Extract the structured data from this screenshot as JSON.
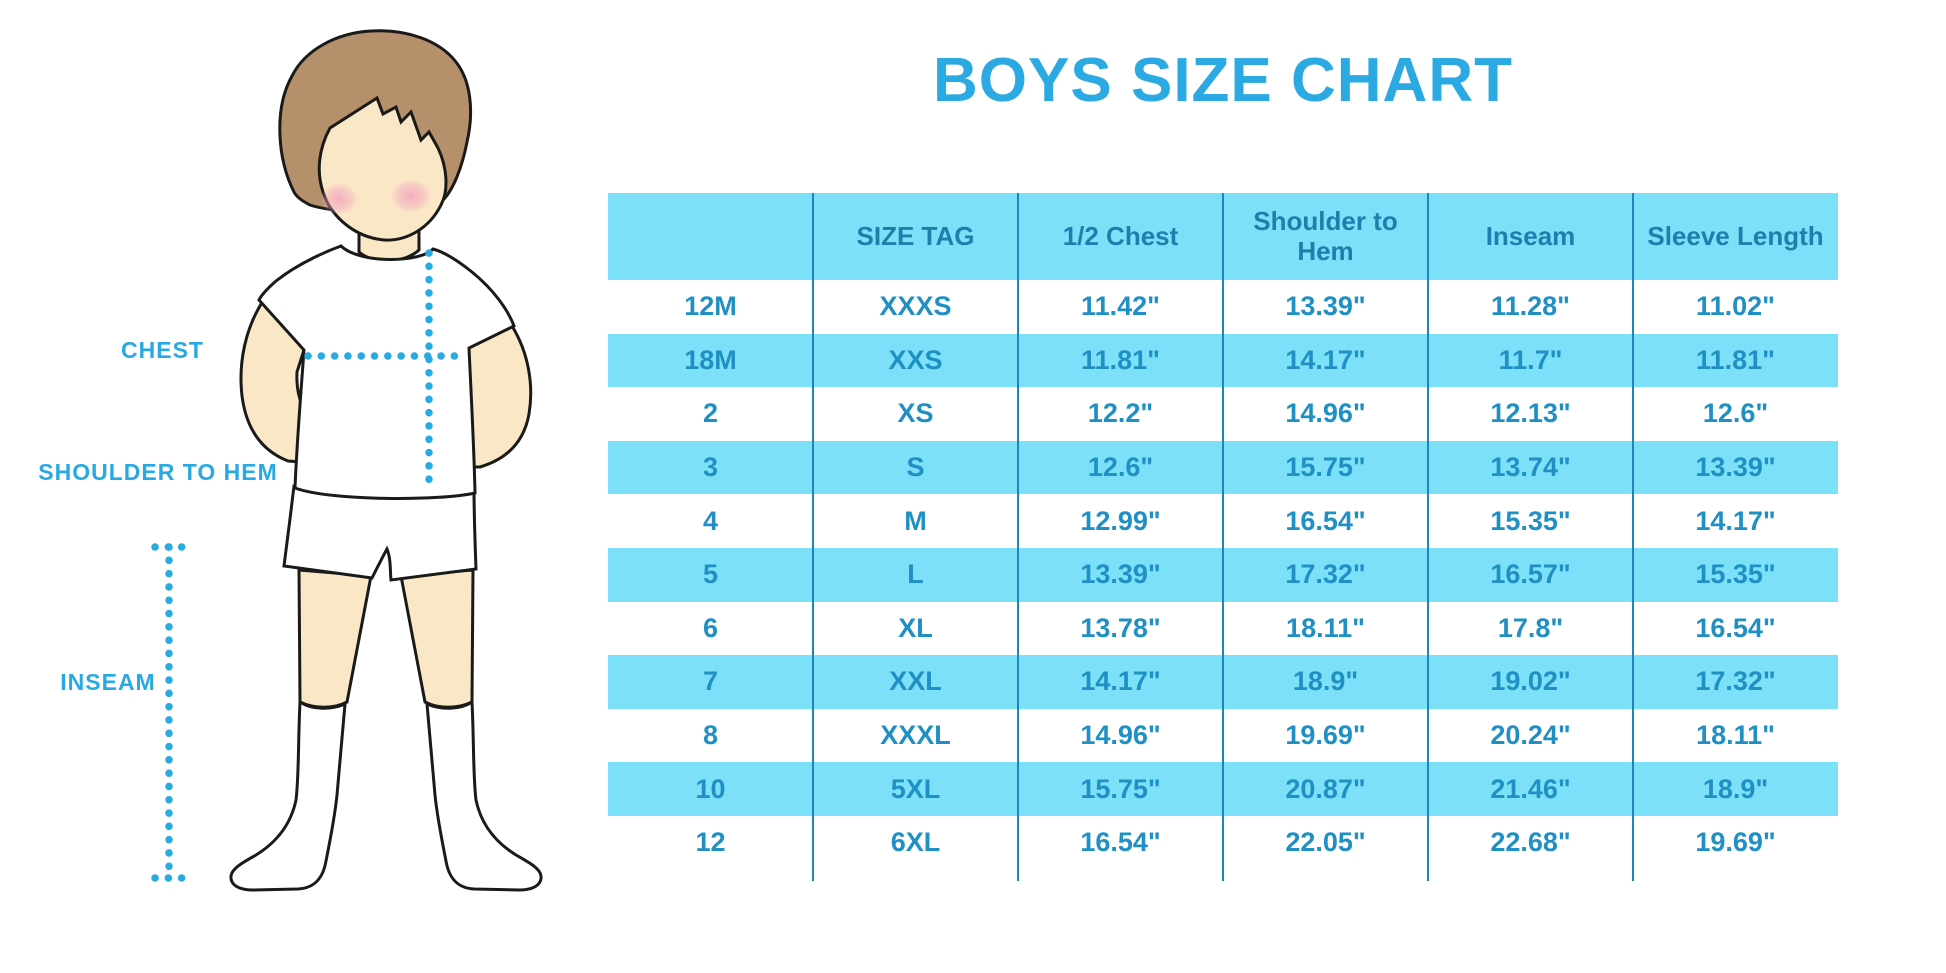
{
  "title": "BOYS SIZE CHART",
  "illustration": {
    "chest_label": "CHEST",
    "shoulder_to_hem_label": "SHOULDER TO HEM",
    "inseam_label": "INSEAM"
  },
  "chart_data": {
    "type": "table",
    "title": "BOYS SIZE CHART",
    "columns": [
      "",
      "SIZE TAG",
      "1/2 Chest",
      "Shoulder to Hem",
      "Inseam",
      "Sleeve Length"
    ],
    "rows": [
      [
        "12M",
        "XXXS",
        "11.42\"",
        "13.39\"",
        "11.28\"",
        "11.02\""
      ],
      [
        "18M",
        "XXS",
        "11.81\"",
        "14.17\"",
        "11.7\"",
        "11.81\""
      ],
      [
        "2",
        "XS",
        "12.2\"",
        "14.96\"",
        "12.13\"",
        "12.6\""
      ],
      [
        "3",
        "S",
        "12.6\"",
        "15.75\"",
        "13.74\"",
        "13.39\""
      ],
      [
        "4",
        "M",
        "12.99\"",
        "16.54\"",
        "15.35\"",
        "14.17\""
      ],
      [
        "5",
        "L",
        "13.39\"",
        "17.32\"",
        "16.57\"",
        "15.35\""
      ],
      [
        "6",
        "XL",
        "13.78\"",
        "18.11\"",
        "17.8\"",
        "16.54\""
      ],
      [
        "7",
        "XXL",
        "14.17\"",
        "18.9\"",
        "19.02\"",
        "17.32\""
      ],
      [
        "8",
        "XXXL",
        "14.96\"",
        "19.69\"",
        "20.24\"",
        "18.11\""
      ],
      [
        "10",
        "5XL",
        "15.75\"",
        "20.87\"",
        "21.46\"",
        "18.9\""
      ],
      [
        "12",
        "6XL",
        "16.54\"",
        "22.05\"",
        "22.68\"",
        "19.69\""
      ]
    ],
    "layout": {
      "striped_rows": true,
      "stripe_color": "#7BE0F8",
      "grid": "vertical-dividers-only"
    }
  },
  "colors": {
    "accent_blue": "#29A9E2",
    "table_stripe": "#7BE0F8",
    "table_text": "#2090C4",
    "header_text": "#1E7FAC",
    "divider": "#1C87B8",
    "dotted_line": "#29ABE2",
    "skin": "#FAE7C6",
    "hair": "#B5906B",
    "blush": "#F3A9BF"
  }
}
